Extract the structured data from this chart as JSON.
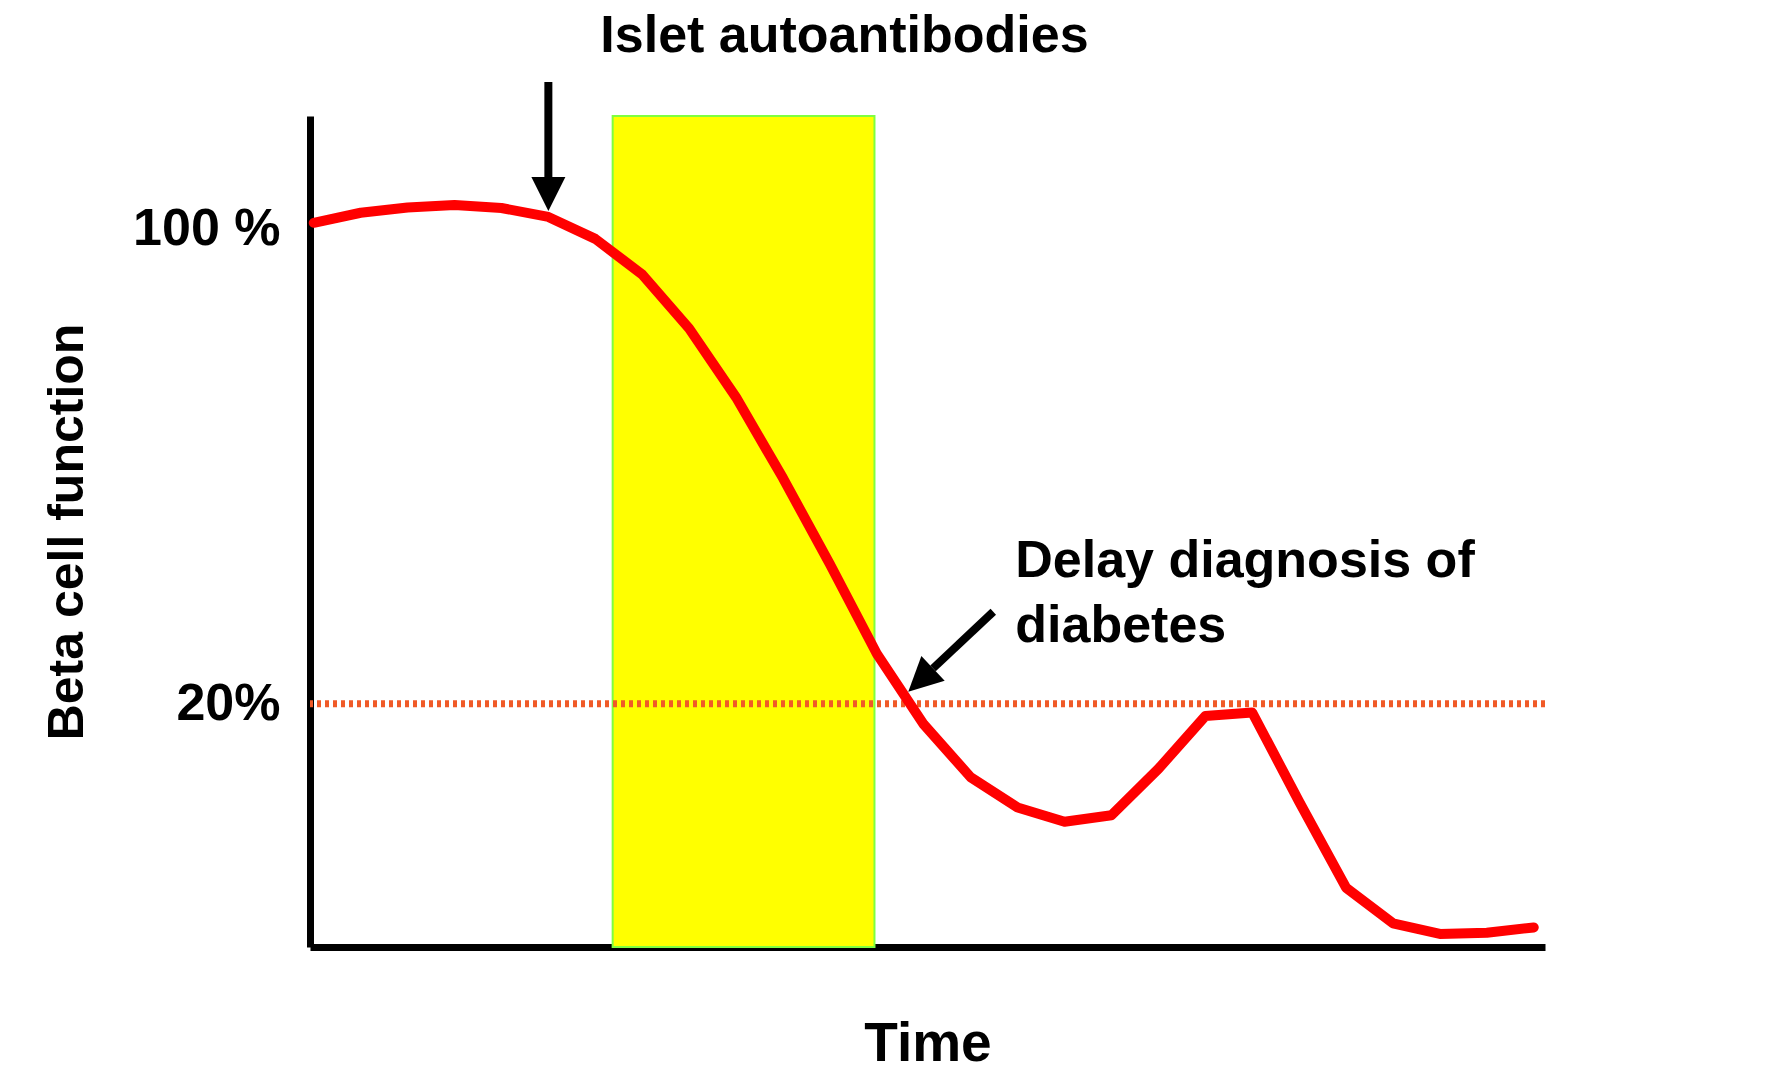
{
  "chart_data": {
    "type": "line",
    "xlabel": "Time",
    "ylabel": "Beta cell function",
    "categories": [
      null,
      null,
      null,
      null,
      null,
      null,
      null,
      null,
      null,
      null,
      null,
      null,
      null,
      null,
      null,
      null,
      null,
      null,
      null,
      null,
      null,
      null,
      null,
      null,
      null,
      null,
      null
    ],
    "series": [
      {
        "color": "#ff0000",
        "values": [
          101,
          102.7,
          103.6,
          104,
          103.5,
          102,
          98.3,
          92.3,
          83.2,
          71.6,
          58,
          43.5,
          28.4,
          16.5,
          7.6,
          2.5,
          0.1,
          1.2,
          9,
          17.9,
          18.5,
          3.5,
          -11,
          -17,
          -18.8,
          -18.6,
          -17.7
        ]
      }
    ],
    "ylim": [
      -21,
      119
    ],
    "yticks": [
      {
        "value": 20,
        "label": "20%"
      },
      {
        "value": 100,
        "label": "100 %"
      }
    ],
    "tick_labels": "y",
    "grid": false,
    "line_style": "solid",
    "marker": "none",
    "ref_lines": [
      {
        "axis": "y",
        "value": 20,
        "color": "#f05a28",
        "line_style": "dotted"
      }
    ],
    "annotations": [
      "Islet autoantibodies",
      "Delay diagnosis of diabetes"
    ]
  }
}
